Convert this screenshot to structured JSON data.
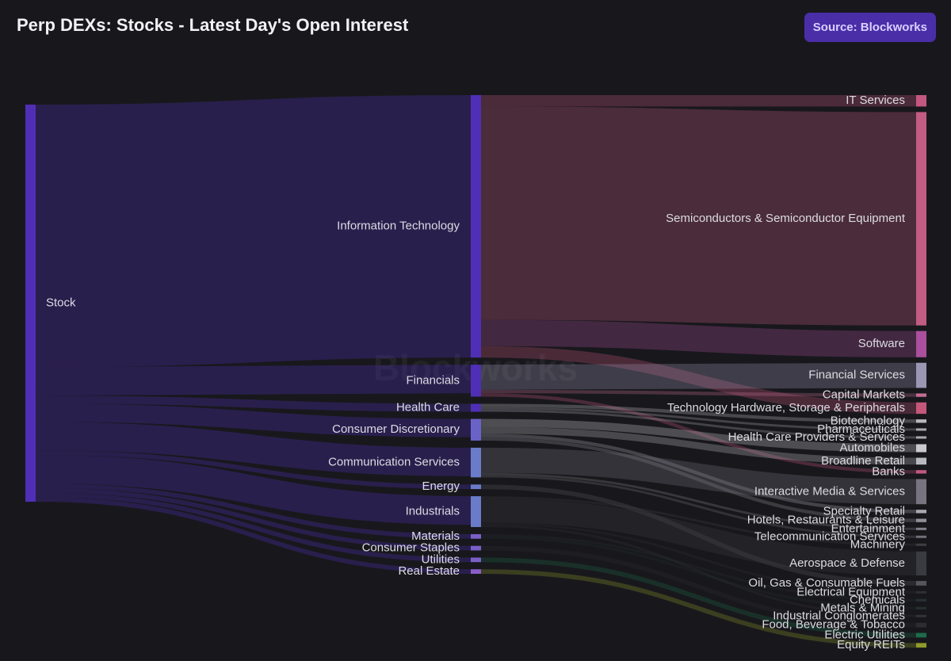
{
  "header": {
    "title": "Perp DEXs: Stocks - Latest Day's Open Interest",
    "source_label": "Source: Blockworks"
  },
  "watermark": "Blockworks",
  "chart_data": {
    "type": "sankey",
    "title": "Perp DEXs: Stocks - Latest Day's Open Interest",
    "units": "relative open interest (estimated from band widths)",
    "nodes": [
      {
        "id": "stock",
        "label": "Stock",
        "column": 0,
        "color": "#4f2fb5"
      },
      {
        "id": "it",
        "label": "Information Technology",
        "column": 1,
        "color": "#4f2fb5"
      },
      {
        "id": "fin",
        "label": "Financials",
        "column": 1,
        "color": "#4f2fb5"
      },
      {
        "id": "hc",
        "label": "Health Care",
        "column": 1,
        "color": "#4f2fb5"
      },
      {
        "id": "cd",
        "label": "Consumer Discretionary",
        "column": 1,
        "color": "#6a63c7"
      },
      {
        "id": "cs",
        "label": "Communication Services",
        "column": 1,
        "color": "#6a7cc9"
      },
      {
        "id": "en",
        "label": "Energy",
        "column": 1,
        "color": "#6a7cc9"
      },
      {
        "id": "ind",
        "label": "Industrials",
        "column": 1,
        "color": "#6a7cc9"
      },
      {
        "id": "mat",
        "label": "Materials",
        "column": 1,
        "color": "#7a5fc9"
      },
      {
        "id": "stap",
        "label": "Consumer Staples",
        "column": 1,
        "color": "#7a5fc9"
      },
      {
        "id": "util",
        "label": "Utilities",
        "column": 1,
        "color": "#7a5fc9"
      },
      {
        "id": "re",
        "label": "Real Estate",
        "column": 1,
        "color": "#8a5cc9"
      },
      {
        "id": "its",
        "label": "IT Services",
        "column": 2,
        "color": "#c4577f"
      },
      {
        "id": "semi",
        "label": "Semiconductors & Semiconductor Equipment",
        "column": 2,
        "color": "#c25c82"
      },
      {
        "id": "soft",
        "label": "Software",
        "column": 2,
        "color": "#a94f9d"
      },
      {
        "id": "finserv",
        "label": "Financial Services",
        "column": 2,
        "color": "#9a96b3"
      },
      {
        "id": "capm",
        "label": "Capital Markets",
        "column": 2,
        "color": "#c46e93"
      },
      {
        "id": "tech",
        "label": "Technology Hardware, Storage & Peripherals",
        "column": 2,
        "color": "#c5577a"
      },
      {
        "id": "bio",
        "label": "Biotechnology",
        "column": 2,
        "color": "#b8b8c0"
      },
      {
        "id": "pharma",
        "label": "Pharmaceuticals",
        "column": 2,
        "color": "#a9a9b2"
      },
      {
        "id": "hcps",
        "label": "Health Care Providers & Services",
        "column": 2,
        "color": "#a9a9b2"
      },
      {
        "id": "auto",
        "label": "Automobiles",
        "column": 2,
        "color": "#c9c9cf"
      },
      {
        "id": "broad",
        "label": "Broadline Retail",
        "column": 2,
        "color": "#b8b8c0"
      },
      {
        "id": "banks",
        "label": "Banks",
        "column": 2,
        "color": "#c4577f"
      },
      {
        "id": "ims",
        "label": "Interactive Media & Services",
        "column": 2,
        "color": "#77737f"
      },
      {
        "id": "spec",
        "label": "Specialty Retail",
        "column": 2,
        "color": "#a9a9b2"
      },
      {
        "id": "hotels",
        "label": "Hotels, Restaurants & Leisure",
        "column": 2,
        "color": "#8f8f98"
      },
      {
        "id": "ent",
        "label": "Entertainment",
        "column": 2,
        "color": "#808089"
      },
      {
        "id": "telecom",
        "label": "Telecommunication Services",
        "column": 2,
        "color": "#6f6f78"
      },
      {
        "id": "mach",
        "label": "Machinery",
        "column": 2,
        "color": "#3d3d44"
      },
      {
        "id": "aero",
        "label": "Aerospace & Defense",
        "column": 2,
        "color": "#3a3a41"
      },
      {
        "id": "oil",
        "label": "Oil, Gas & Consumable Fuels",
        "column": 2,
        "color": "#56565e"
      },
      {
        "id": "elec",
        "label": "Electrical Equipment",
        "column": 2,
        "color": "#2e2e34"
      },
      {
        "id": "chem",
        "label": "Chemicals",
        "column": 2,
        "color": "#283038"
      },
      {
        "id": "metals",
        "label": "Metals & Mining",
        "column": 2,
        "color": "#26302e"
      },
      {
        "id": "indcong",
        "label": "Industrial Conglomerates",
        "column": 2,
        "color": "#333338"
      },
      {
        "id": "food",
        "label": "Food, Beverage & Tobacco",
        "column": 2,
        "color": "#2c2c31"
      },
      {
        "id": "elutil",
        "label": "Electric Utilities",
        "column": 2,
        "color": "#1d6b4a"
      },
      {
        "id": "reits",
        "label": "Equity REITs",
        "column": 2,
        "color": "#8f9a2a"
      }
    ],
    "links": [
      {
        "source": "stock",
        "target": "it",
        "value": 230
      },
      {
        "source": "stock",
        "target": "fin",
        "value": 25
      },
      {
        "source": "stock",
        "target": "hc",
        "value": 7
      },
      {
        "source": "stock",
        "target": "cd",
        "value": 16
      },
      {
        "source": "stock",
        "target": "cs",
        "value": 25
      },
      {
        "source": "stock",
        "target": "en",
        "value": 4
      },
      {
        "source": "stock",
        "target": "ind",
        "value": 25
      },
      {
        "source": "stock",
        "target": "mat",
        "value": 4
      },
      {
        "source": "stock",
        "target": "stap",
        "value": 4
      },
      {
        "source": "stock",
        "target": "util",
        "value": 4
      },
      {
        "source": "stock",
        "target": "re",
        "value": 4
      },
      {
        "source": "it",
        "target": "its",
        "value": 10
      },
      {
        "source": "it",
        "target": "semi",
        "value": 187
      },
      {
        "source": "it",
        "target": "soft",
        "value": 23
      },
      {
        "source": "it",
        "target": "tech",
        "value": 10
      },
      {
        "source": "fin",
        "target": "finserv",
        "value": 22
      },
      {
        "source": "fin",
        "target": "capm",
        "value": 3
      },
      {
        "source": "fin",
        "target": "banks",
        "value": 3
      },
      {
        "source": "hc",
        "target": "bio",
        "value": 3
      },
      {
        "source": "hc",
        "target": "pharma",
        "value": 2
      },
      {
        "source": "hc",
        "target": "hcps",
        "value": 2
      },
      {
        "source": "cd",
        "target": "auto",
        "value": 7
      },
      {
        "source": "cd",
        "target": "broad",
        "value": 6
      },
      {
        "source": "cd",
        "target": "spec",
        "value": 3
      },
      {
        "source": "cd",
        "target": "hotels",
        "value": 3
      },
      {
        "source": "cs",
        "target": "ims",
        "value": 22
      },
      {
        "source": "cs",
        "target": "ent",
        "value": 2
      },
      {
        "source": "cs",
        "target": "telecom",
        "value": 2
      },
      {
        "source": "en",
        "target": "oil",
        "value": 4
      },
      {
        "source": "ind",
        "target": "mach",
        "value": 2
      },
      {
        "source": "ind",
        "target": "aero",
        "value": 21
      },
      {
        "source": "ind",
        "target": "elec",
        "value": 2
      },
      {
        "source": "ind",
        "target": "indcong",
        "value": 2
      },
      {
        "source": "mat",
        "target": "chem",
        "value": 2
      },
      {
        "source": "mat",
        "target": "metals",
        "value": 2
      },
      {
        "source": "stap",
        "target": "food",
        "value": 4
      },
      {
        "source": "util",
        "target": "elutil",
        "value": 4
      },
      {
        "source": "re",
        "target": "reits",
        "value": 4
      }
    ]
  }
}
